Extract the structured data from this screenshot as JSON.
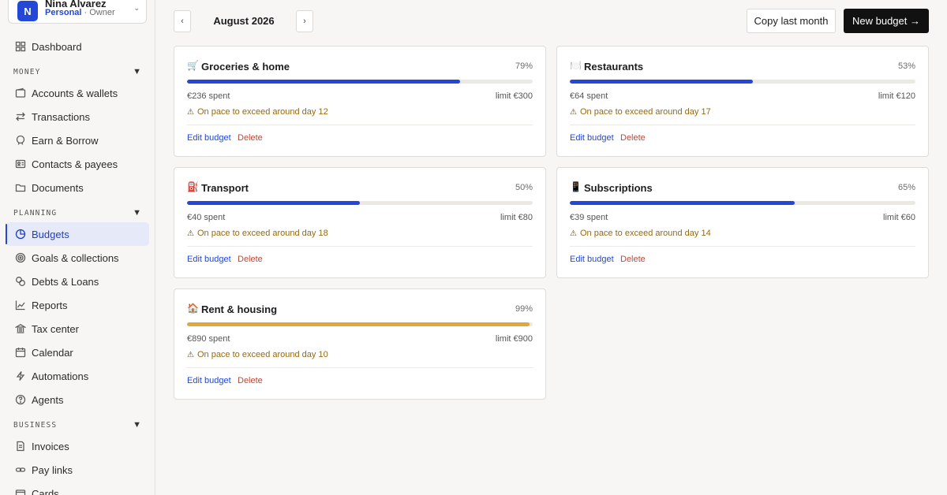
{
  "account": {
    "initial": "N",
    "name": "Nina Alvarez",
    "plan": "Personal",
    "role": "Owner"
  },
  "sidebar": {
    "dashboard": {
      "label": "Dashboard",
      "icon": "grid-icon"
    },
    "sections": [
      {
        "label": "MONEY",
        "items": [
          {
            "label": "Accounts & wallets",
            "icon": "wallet-icon"
          },
          {
            "label": "Transactions",
            "icon": "swap-arrows-icon"
          },
          {
            "label": "Earn & Borrow",
            "icon": "piggy-icon"
          },
          {
            "label": "Contacts & payees",
            "icon": "contact-card-icon"
          },
          {
            "label": "Documents",
            "icon": "folder-icon"
          }
        ]
      },
      {
        "label": "PLANNING",
        "items": [
          {
            "label": "Budgets",
            "icon": "pie-icon",
            "active": true
          },
          {
            "label": "Goals & collections",
            "icon": "target-icon"
          },
          {
            "label": "Debts & Loans",
            "icon": "coins-icon"
          },
          {
            "label": "Reports",
            "icon": "line-chart-icon"
          },
          {
            "label": "Tax center",
            "icon": "bank-icon"
          },
          {
            "label": "Calendar",
            "icon": "calendar-icon"
          },
          {
            "label": "Automations",
            "icon": "bolt-icon"
          },
          {
            "label": "Agents",
            "icon": "help-circle-icon"
          }
        ]
      },
      {
        "label": "BUSINESS",
        "items": [
          {
            "label": "Invoices",
            "icon": "invoice-icon"
          },
          {
            "label": "Pay links",
            "icon": "link-icon"
          },
          {
            "label": "Cards",
            "icon": "card-icon"
          }
        ]
      }
    ]
  },
  "toolbar": {
    "prev": "‹",
    "next": "›",
    "month": "August 2026",
    "copy_label": "Copy last month",
    "new_label": "New budget →"
  },
  "budgets": [
    {
      "emoji": "🛒",
      "title": "Groceries & home",
      "pct_label": "79%",
      "progress": 0.79,
      "spent": "€236 spent",
      "limit": "limit €300",
      "pace": "On pace to exceed around day 12",
      "edit": "Edit budget",
      "delete": "Delete",
      "bar_color": "#2347d6"
    },
    {
      "emoji": "🍽️",
      "title": "Restaurants",
      "pct_label": "53%",
      "progress": 0.53,
      "spent": "€64 spent",
      "limit": "limit €120",
      "pace": "On pace to exceed around day 17",
      "edit": "Edit budget",
      "delete": "Delete",
      "bar_color": "#2347d6"
    },
    {
      "emoji": "⛽",
      "title": "Transport",
      "pct_label": "50%",
      "progress": 0.5,
      "spent": "€40 spent",
      "limit": "limit €80",
      "pace": "On pace to exceed around day 18",
      "edit": "Edit budget",
      "delete": "Delete",
      "bar_color": "#2347d6"
    },
    {
      "emoji": "📱",
      "title": "Subscriptions",
      "pct_label": "65%",
      "progress": 0.65,
      "spent": "€39 spent",
      "limit": "limit €60",
      "pace": "On pace to exceed around day 14",
      "edit": "Edit budget",
      "delete": "Delete",
      "bar_color": "#2347d6"
    },
    {
      "emoji": "🏠",
      "title": "Rent & housing",
      "pct_label": "99%",
      "progress": 0.99,
      "spent": "€890 spent",
      "limit": "limit €900",
      "pace": "On pace to exceed around day 10",
      "edit": "Edit budget",
      "delete": "Delete",
      "bar_color": "#e0a83a"
    }
  ],
  "warning_glyph": "⚠"
}
